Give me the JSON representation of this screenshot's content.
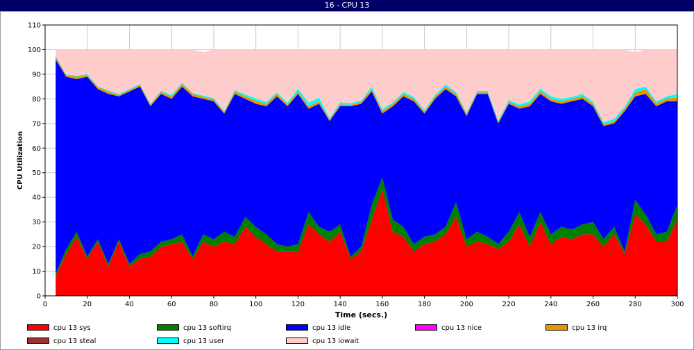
{
  "window": {
    "title": "16 - CPU 13"
  },
  "chart_data": {
    "type": "area",
    "stacked": true,
    "title": "16 - CPU 13",
    "xlabel": "Time (secs.)",
    "ylabel": "CPU Utilization",
    "xlim": [
      0,
      300
    ],
    "ylim": [
      0,
      110
    ],
    "xticks": [
      0,
      20,
      40,
      60,
      80,
      100,
      120,
      140,
      160,
      180,
      200,
      220,
      240,
      260,
      280,
      300
    ],
    "yticks": [
      0,
      10,
      20,
      30,
      40,
      50,
      60,
      70,
      80,
      90,
      100,
      110
    ],
    "grid": true,
    "legend_position": "bottom",
    "x": [
      5,
      10,
      15,
      20,
      25,
      30,
      35,
      40,
      45,
      50,
      55,
      60,
      65,
      70,
      75,
      80,
      85,
      90,
      95,
      100,
      105,
      110,
      115,
      120,
      125,
      130,
      135,
      140,
      145,
      150,
      155,
      160,
      165,
      170,
      175,
      180,
      185,
      190,
      195,
      200,
      205,
      210,
      215,
      220,
      225,
      230,
      235,
      240,
      245,
      250,
      255,
      260,
      265,
      270,
      275,
      280,
      285,
      290,
      295,
      300
    ],
    "series": [
      {
        "name": "cpu 13 sys",
        "color": "#ff0000",
        "values": [
          8,
          17,
          24,
          15,
          22,
          12,
          22,
          12,
          15,
          16,
          20,
          21,
          22,
          15,
          22,
          20,
          22,
          21,
          28,
          24,
          21,
          18,
          18,
          18,
          29,
          25,
          22,
          26,
          15,
          18,
          31,
          43,
          26,
          24,
          18,
          21,
          22,
          25,
          32,
          20,
          22,
          21,
          19,
          22,
          29,
          20,
          30,
          21,
          24,
          23,
          25,
          25,
          20,
          25,
          17,
          33,
          29,
          22,
          22,
          31
        ]
      },
      {
        "name": "cpu 13 softirq",
        "color": "#008000",
        "values": [
          1,
          2,
          2,
          1,
          1,
          1,
          1,
          1,
          2,
          2,
          2,
          2,
          3,
          1,
          3,
          3,
          4,
          3,
          4,
          4,
          4,
          3,
          2,
          3,
          5,
          3,
          4,
          3,
          1,
          2,
          6,
          5,
          5,
          4,
          3,
          3,
          3,
          3,
          6,
          3,
          4,
          3,
          2,
          4,
          5,
          4,
          4,
          4,
          4,
          4,
          4,
          5,
          3,
          3,
          1,
          6,
          4,
          3,
          4,
          6
        ]
      },
      {
        "name": "cpu 13 idle",
        "color": "#0000ff",
        "values": [
          87,
          70,
          62,
          73,
          61,
          69,
          58,
          70,
          68,
          59,
          60,
          57,
          60,
          65,
          55,
          56,
          48,
          58,
          48,
          50,
          52,
          60,
          57,
          61,
          42,
          50,
          45,
          48,
          61,
          58,
          46,
          26,
          46,
          53,
          58,
          50,
          55,
          56,
          43,
          50,
          56,
          58,
          49,
          52,
          42,
          53,
          48,
          54,
          50,
          52,
          51,
          47,
          46,
          42,
          57,
          42,
          49,
          52,
          53,
          42
        ]
      },
      {
        "name": "cpu 13 nice",
        "color": "#ff00ff",
        "values": [
          0,
          0,
          0,
          0,
          0,
          0,
          0,
          0,
          0,
          0,
          0,
          0,
          0,
          0,
          0,
          0,
          0,
          0,
          0,
          0,
          0,
          0,
          0,
          0,
          0,
          0,
          0,
          0,
          0,
          0,
          0,
          0,
          0,
          0,
          0,
          0,
          0,
          0,
          0,
          0,
          0,
          0,
          0,
          0,
          0,
          0,
          0,
          0,
          0,
          0,
          0,
          0,
          0,
          0,
          0,
          0,
          0,
          0,
          0,
          0
        ]
      },
      {
        "name": "cpu 13 irq",
        "color": "#e69500",
        "values": [
          1,
          0.6,
          1,
          0.6,
          0.8,
          1,
          0.6,
          0.6,
          0.6,
          0.6,
          0.8,
          1,
          1,
          1,
          0.8,
          0.8,
          0.6,
          1,
          1,
          1.2,
          1,
          1,
          0.8,
          1,
          1,
          1,
          0.6,
          0.8,
          0.6,
          0.8,
          1,
          1,
          1,
          1,
          1,
          0.8,
          1,
          1,
          1,
          0.8,
          0.6,
          0.6,
          0.6,
          0.8,
          1,
          1,
          1.2,
          1,
          1,
          1,
          1,
          1,
          0.8,
          0.8,
          1,
          1.5,
          2,
          1.2,
          1.2,
          1.5
        ]
      },
      {
        "name": "cpu 13 steal",
        "color": "#993333",
        "values": [
          0,
          0,
          0,
          0,
          0,
          0,
          0,
          0,
          0,
          0,
          0,
          0,
          0,
          0,
          0,
          0,
          0,
          0,
          0,
          0,
          0,
          0,
          0,
          0,
          0,
          0,
          0,
          0,
          0,
          0,
          0,
          0,
          0,
          0,
          0,
          0,
          0,
          0,
          0,
          0,
          0,
          0,
          0,
          0,
          0,
          0,
          0,
          0,
          0,
          0,
          0,
          0,
          0,
          0,
          0,
          0,
          0,
          0,
          0,
          0
        ]
      },
      {
        "name": "cpu 13 user",
        "color": "#00ffff",
        "values": [
          0.5,
          0.3,
          0.4,
          0.4,
          0.3,
          0.4,
          0.4,
          0.4,
          0.5,
          0.4,
          0.5,
          0.6,
          0.6,
          0.4,
          0.5,
          0.5,
          0.4,
          0.6,
          0.8,
          1,
          0.8,
          0.6,
          0.6,
          1.2,
          1.5,
          1.5,
          0.6,
          0.8,
          0.6,
          0.6,
          1,
          0.8,
          0.6,
          0.8,
          0.8,
          0.6,
          0.6,
          0.8,
          0.8,
          0.6,
          0.6,
          0.6,
          0.6,
          0.8,
          0.8,
          1,
          1,
          1,
          1,
          0.8,
          1,
          0.8,
          0.8,
          1,
          0.8,
          1.5,
          1,
          0.8,
          0.8,
          1.5
        ]
      },
      {
        "name": "cpu 13 iowait",
        "color": "#ffcccc",
        "values": [
          2.5,
          10.1,
          10.6,
          10,
          14.9,
          16.6,
          18,
          16,
          13.9,
          22,
          16.7,
          18.4,
          13.4,
          17.6,
          17.7,
          19.7,
          25,
          16.4,
          18.2,
          19.8,
          21.2,
          17.4,
          21.6,
          15.8,
          21.5,
          19.5,
          27.8,
          21.4,
          21.8,
          20.6,
          15,
          24.2,
          21.4,
          17.2,
          19.2,
          24.6,
          18.4,
          14.2,
          17.2,
          25.6,
          16.8,
          16.8,
          28.8,
          20.4,
          22.2,
          21,
          15.8,
          19,
          20,
          19.2,
          18,
          21.2,
          29.4,
          28.2,
          23.2,
          15,
          15,
          21,
          19,
          18
        ]
      }
    ]
  },
  "legend": [
    {
      "label": "cpu 13 sys",
      "color": "#ff0000"
    },
    {
      "label": "cpu 13 softirq",
      "color": "#008000"
    },
    {
      "label": "cpu 13 idle",
      "color": "#0000ff"
    },
    {
      "label": "cpu 13 nice",
      "color": "#ff00ff"
    },
    {
      "label": "cpu 13 irq",
      "color": "#e69500"
    },
    {
      "label": "cpu 13 steal",
      "color": "#993333"
    },
    {
      "label": "cpu 13 user",
      "color": "#00ffff"
    },
    {
      "label": "cpu 13 iowait",
      "color": "#ffcccc"
    }
  ]
}
